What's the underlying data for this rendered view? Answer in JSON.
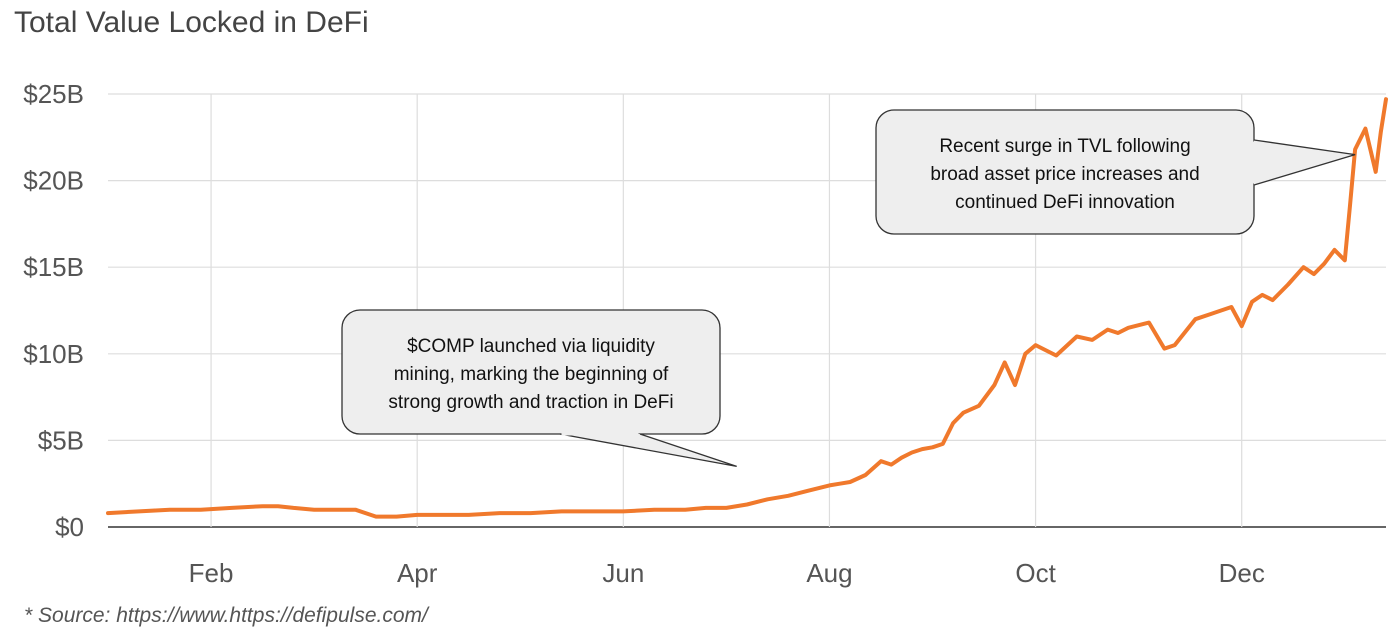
{
  "chart_data": {
    "type": "line",
    "title": "Total Value Locked in DeFi",
    "xlabel": "",
    "ylabel": "",
    "y_unit": "billions USD",
    "ylim": [
      0,
      25
    ],
    "yticks": [
      0,
      5,
      10,
      15,
      20,
      25
    ],
    "ytick_labels": [
      "$0",
      "$5B",
      "$10B",
      "$15B",
      "$20B",
      "$25B"
    ],
    "xlim": [
      0,
      12.4
    ],
    "xticks": [
      1,
      3,
      5,
      7,
      9,
      11
    ],
    "xtick_labels": [
      "Feb",
      "Apr",
      "Jun",
      "Aug",
      "Oct",
      "Dec"
    ],
    "grid": true,
    "color": "#f0792c",
    "series": [
      {
        "x": [
          0,
          0.3,
          0.6,
          0.9,
          1.2,
          1.5,
          1.65,
          1.8,
          2.0,
          2.2,
          2.4,
          2.6,
          2.8,
          3.0,
          3.2,
          3.5,
          3.8,
          4.1,
          4.4,
          4.7,
          5.0,
          5.3,
          5.6,
          5.8,
          6.0,
          6.2,
          6.4,
          6.6,
          6.8,
          7.0,
          7.1,
          7.2,
          7.35,
          7.5,
          7.6,
          7.7,
          7.8,
          7.9,
          8.0,
          8.1,
          8.2,
          8.3,
          8.45,
          8.6,
          8.7,
          8.8,
          8.9,
          9.0,
          9.2,
          9.4,
          9.55,
          9.7,
          9.8,
          9.9,
          10.1,
          10.25,
          10.35,
          10.55,
          10.7,
          10.8,
          10.9,
          11.0,
          11.1,
          11.2,
          11.3,
          11.45,
          11.6,
          11.7,
          11.8,
          11.9,
          12.0,
          12.05,
          12.1,
          12.2,
          12.3,
          12.35,
          12.4
        ],
        "y": [
          0.8,
          0.9,
          1.0,
          1.0,
          1.1,
          1.2,
          1.2,
          1.1,
          1.0,
          1.0,
          1.0,
          0.6,
          0.6,
          0.7,
          0.7,
          0.7,
          0.8,
          0.8,
          0.9,
          0.9,
          0.9,
          1.0,
          1.0,
          1.1,
          1.1,
          1.3,
          1.6,
          1.8,
          2.1,
          2.4,
          2.5,
          2.6,
          3.0,
          3.8,
          3.6,
          4.0,
          4.3,
          4.5,
          4.6,
          4.8,
          6.0,
          6.6,
          7.0,
          8.2,
          9.5,
          8.2,
          10.0,
          10.5,
          9.9,
          11.0,
          10.8,
          11.4,
          11.2,
          11.5,
          11.8,
          10.3,
          10.5,
          12.0,
          12.3,
          12.5,
          12.7,
          11.6,
          13.0,
          13.4,
          13.1,
          14.0,
          15.0,
          14.6,
          15.2,
          16.0,
          15.4,
          18.5,
          21.8,
          23.0,
          20.5,
          22.8,
          24.7
        ]
      }
    ],
    "annotations": [
      {
        "lines": [
          "$COMP launched via liquidity",
          "mining, marking the beginning of",
          "strong growth and traction in DeFi"
        ],
        "target": {
          "x": 6.1,
          "y": 3.5
        }
      },
      {
        "lines": [
          "Recent surge in TVL following",
          "broad asset price increases and",
          "continued DeFi innovation"
        ],
        "target": {
          "x": 12.1,
          "y": 21.5
        }
      }
    ]
  },
  "footer": {
    "source": "* Source: https://www.https://defipulse.com/"
  }
}
